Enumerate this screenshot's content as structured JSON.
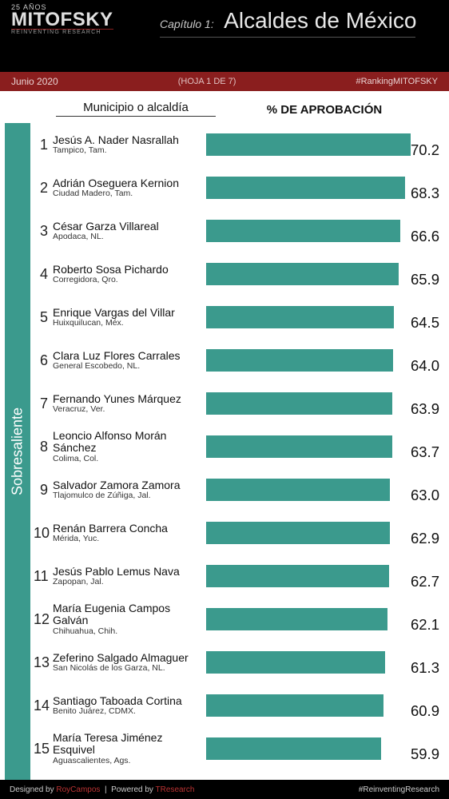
{
  "header": {
    "logo_badge": "25 AÑOS",
    "logo_main": "MITOFSKY",
    "logo_sub": "REINVENTING RESEARCH",
    "chapter_label": "Capítulo 1:",
    "chapter_title": "Alcaldes de México",
    "date": "Junio 2020",
    "page_of": "(HOJA 1 DE 7)",
    "hashtag": "#RankingMITOFSKY"
  },
  "columns": {
    "left": "Municipio o alcaldía",
    "right": "% DE APROBACIÓN"
  },
  "sidebar_label": "Sobresaliente",
  "bar_color": "#3b9a8d",
  "value_max": 80,
  "rows": [
    {
      "rank": "1",
      "name": "Jesús A. Nader Nasrallah",
      "place": "Tampico, Tam.",
      "value": 70.2
    },
    {
      "rank": "2",
      "name": "Adrián Oseguera Kernion",
      "place": "Ciudad Madero, Tam.",
      "value": 68.3
    },
    {
      "rank": "3",
      "name": "César Garza Villareal",
      "place": "Apodaca, NL.",
      "value": 66.6
    },
    {
      "rank": "4",
      "name": "Roberto Sosa Pichardo",
      "place": "Corregidora, Qro.",
      "value": 65.9
    },
    {
      "rank": "5",
      "name": "Enrique Vargas del Villar",
      "place": "Huixquilucan, Méx.",
      "value": 64.5
    },
    {
      "rank": "6",
      "name": "Clara Luz Flores Carrales",
      "place": "General Escobedo, NL.",
      "value": 64.0
    },
    {
      "rank": "7",
      "name": "Fernando Yunes Márquez",
      "place": "Veracruz, Ver.",
      "value": 63.9
    },
    {
      "rank": "8",
      "name": "Leoncio Alfonso Morán Sánchez",
      "place": "Colima, Col.",
      "value": 63.7
    },
    {
      "rank": "9",
      "name": "Salvador Zamora Zamora",
      "place": "Tlajomulco de Zúñiga, Jal.",
      "value": 63.0
    },
    {
      "rank": "10",
      "name": "Renán Barrera Concha",
      "place": "Mérida, Yuc.",
      "value": 62.9
    },
    {
      "rank": "11",
      "name": "Jesús Pablo Lemus Nava",
      "place": "Zapopan, Jal.",
      "value": 62.7
    },
    {
      "rank": "12",
      "name": "María Eugenia Campos Galván",
      "place": "Chihuahua, Chih.",
      "value": 62.1
    },
    {
      "rank": "13",
      "name": "Zeferino Salgado Almaguer",
      "place": "San Nicolás de los Garza, NL.",
      "value": 61.3
    },
    {
      "rank": "14",
      "name": "Santiago Taboada Cortina",
      "place": "Benito Juárez, CDMX.",
      "value": 60.9
    },
    {
      "rank": "15",
      "name": "María Teresa Jiménez Esquivel",
      "place": "Aguascalientes, Ags.",
      "value": 59.9
    }
  ],
  "footer": {
    "designed_label": "Designed by",
    "designed_by": "RoyCampos",
    "powered_label": "Powered by",
    "powered_by": "TResearch",
    "right": "#ReinventingResearch"
  }
}
